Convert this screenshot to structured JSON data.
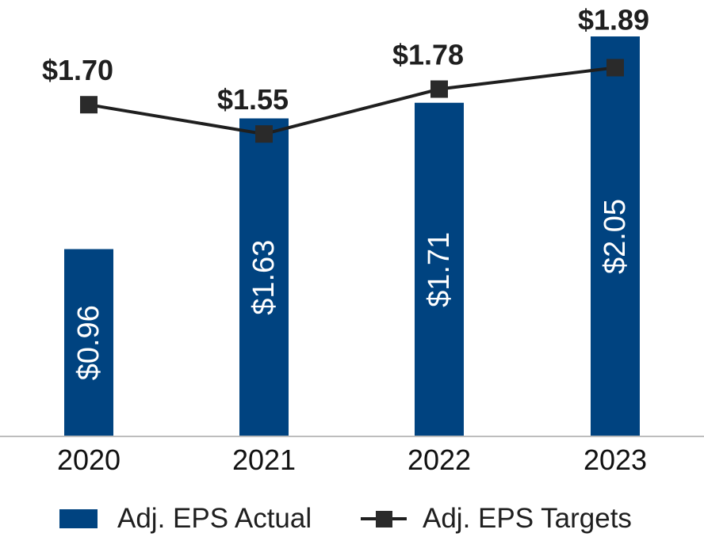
{
  "chart_data": {
    "type": "bar",
    "categories": [
      "2020",
      "2021",
      "2022",
      "2023"
    ],
    "series": [
      {
        "name": "Adj. EPS Actual",
        "type": "bar",
        "values": [
          0.96,
          1.63,
          1.71,
          2.05
        ],
        "labels": [
          "$0.96",
          "$1.63",
          "$1.71",
          "$2.05"
        ],
        "color": "#004380"
      },
      {
        "name": "Adj. EPS Targets",
        "type": "line",
        "values": [
          1.7,
          1.55,
          1.78,
          1.89
        ],
        "labels": [
          "$1.70",
          "$1.55",
          "$1.78",
          "$1.89"
        ],
        "color": "#1f1f1f",
        "marker": "square"
      }
    ],
    "ylim": [
      0,
      2.05
    ],
    "grid": false,
    "legend": "bottom-center"
  }
}
